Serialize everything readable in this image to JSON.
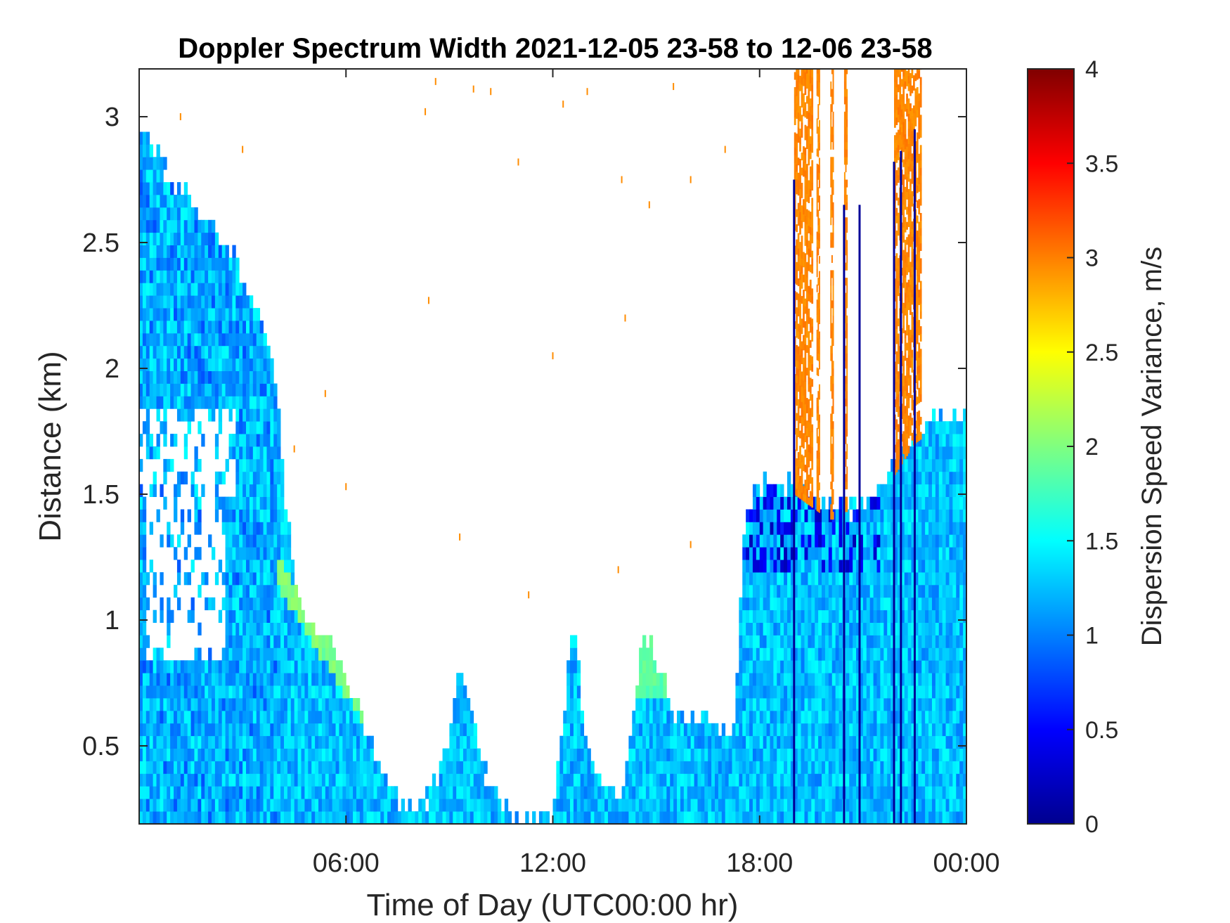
{
  "chart_data": {
    "type": "heatmap",
    "title": "Doppler Spectrum Width 2021-12-05 23-58 to 12-06 23-58",
    "xlabel": "Time of Day (UTC00:00 hr)",
    "ylabel": "Distance (km)",
    "colorbar_label": "Dispersion Speed Variance, m/s",
    "colormap": "jet",
    "xlim_hours": [
      0,
      24
    ],
    "ylim": [
      0.19,
      3.19
    ],
    "clim": [
      0,
      4
    ],
    "x_ticks": [
      {
        "value": 6,
        "label": "06:00"
      },
      {
        "value": 12,
        "label": "12:00"
      },
      {
        "value": 18,
        "label": "18:00"
      },
      {
        "value": 24,
        "label": "00:00"
      }
    ],
    "y_ticks": [
      {
        "value": 0.5,
        "label": "0.5"
      },
      {
        "value": 1,
        "label": "1"
      },
      {
        "value": 1.5,
        "label": "1.5"
      },
      {
        "value": 2,
        "label": "2"
      },
      {
        "value": 2.5,
        "label": "2.5"
      },
      {
        "value": 3,
        "label": "3"
      }
    ],
    "colorbar_ticks": [
      {
        "value": 0,
        "label": "0"
      },
      {
        "value": 0.5,
        "label": "0.5"
      },
      {
        "value": 1,
        "label": "1"
      },
      {
        "value": 1.5,
        "label": "1.5"
      },
      {
        "value": 2,
        "label": "2"
      },
      {
        "value": 2.5,
        "label": "2.5"
      },
      {
        "value": 3,
        "label": "3"
      },
      {
        "value": 3.5,
        "label": "3.5"
      },
      {
        "value": 4,
        "label": "4"
      }
    ],
    "data_top_km": [
      [
        0.0,
        2.95
      ],
      [
        1.0,
        2.75
      ],
      [
        2.0,
        2.6
      ],
      [
        2.7,
        2.45
      ],
      [
        3.2,
        2.3
      ],
      [
        3.8,
        2.1
      ],
      [
        4.0,
        1.9
      ],
      [
        4.3,
        1.4
      ],
      [
        4.7,
        1.05
      ],
      [
        5.2,
        0.95
      ],
      [
        5.6,
        0.9
      ],
      [
        6.0,
        0.75
      ],
      [
        6.5,
        0.6
      ],
      [
        7.0,
        0.42
      ],
      [
        7.5,
        0.3
      ],
      [
        8.0,
        0.25
      ],
      [
        8.5,
        0.32
      ],
      [
        9.0,
        0.55
      ],
      [
        9.3,
        0.85
      ],
      [
        9.6,
        0.7
      ],
      [
        10.0,
        0.4
      ],
      [
        10.5,
        0.27
      ],
      [
        11.0,
        0.23
      ],
      [
        11.5,
        0.21
      ],
      [
        12.0,
        0.21
      ],
      [
        12.3,
        0.6
      ],
      [
        12.6,
        1.05
      ],
      [
        12.9,
        0.55
      ],
      [
        13.5,
        0.35
      ],
      [
        14.0,
        0.3
      ],
      [
        14.3,
        0.55
      ],
      [
        14.6,
        0.95
      ],
      [
        15.0,
        0.85
      ],
      [
        15.5,
        0.65
      ],
      [
        16.0,
        0.6
      ],
      [
        16.5,
        0.6
      ],
      [
        17.0,
        0.55
      ],
      [
        17.3,
        0.6
      ],
      [
        17.5,
        1.3
      ],
      [
        17.8,
        1.5
      ],
      [
        18.2,
        1.55
      ],
      [
        19.0,
        1.55
      ],
      [
        20.0,
        1.45
      ],
      [
        21.0,
        1.45
      ],
      [
        21.8,
        1.6
      ],
      [
        22.5,
        1.75
      ],
      [
        23.0,
        1.8
      ],
      [
        24.0,
        1.82
      ]
    ],
    "clear_regions": [
      {
        "x0": 0.0,
        "x1": 2.8,
        "y0": 1.5,
        "y1": 1.82
      },
      {
        "x0": 0.2,
        "x1": 2.5,
        "y0": 0.85,
        "y1": 1.5
      }
    ],
    "orange_bands_hours": [
      [
        19.0,
        19.55
      ],
      [
        19.65,
        19.75
      ],
      [
        20.05,
        20.15
      ],
      [
        20.45,
        20.55
      ],
      [
        21.9,
        22.7
      ]
    ],
    "dark_blue_streaks_hours": [
      19.0,
      20.45,
      20.9,
      21.9,
      22.1,
      22.5
    ],
    "sparse_orange_points": [
      [
        1.2,
        3.0
      ],
      [
        3.0,
        2.87
      ],
      [
        8.3,
        3.02
      ],
      [
        8.6,
        3.14
      ],
      [
        9.7,
        3.11
      ],
      [
        10.2,
        3.1
      ],
      [
        11.0,
        2.82
      ],
      [
        12.3,
        3.05
      ],
      [
        13.0,
        3.1
      ],
      [
        14.0,
        2.75
      ],
      [
        15.5,
        3.12
      ],
      [
        16.0,
        2.75
      ],
      [
        17.0,
        2.87
      ],
      [
        4.5,
        1.68
      ],
      [
        6.0,
        1.53
      ],
      [
        9.3,
        1.33
      ],
      [
        11.3,
        1.1
      ],
      [
        8.4,
        2.27
      ],
      [
        13.9,
        1.2
      ],
      [
        14.1,
        2.2
      ],
      [
        16.0,
        1.3
      ],
      [
        12.0,
        2.05
      ],
      [
        5.4,
        1.9
      ],
      [
        14.8,
        2.65
      ]
    ]
  }
}
